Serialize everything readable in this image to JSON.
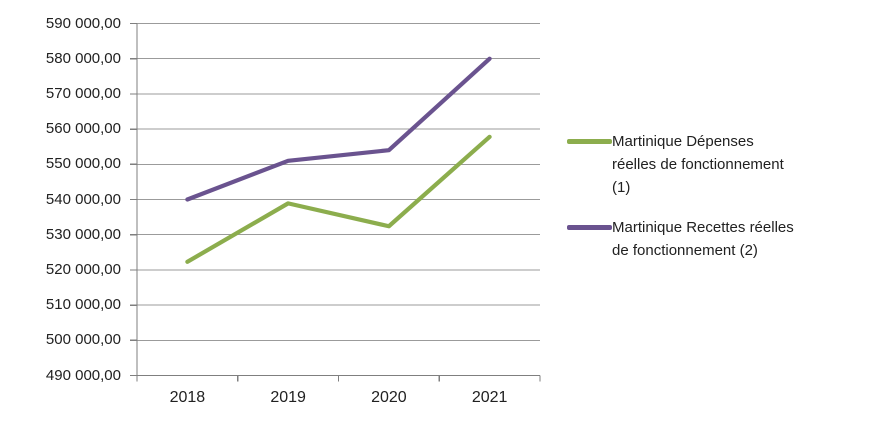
{
  "chart_data": {
    "type": "line",
    "categories": [
      "2018",
      "2019",
      "2020",
      "2021"
    ],
    "series": [
      {
        "name": "Martinique Dépenses réelles de fonctionnement (1)",
        "legend_lines": [
          "Martinique Dépenses",
          "réelles de fonctionnement",
          "(1)"
        ],
        "color": "#8CAD4D",
        "values": [
          522300,
          538900,
          532400,
          557800
        ]
      },
      {
        "name": "Martinique Recettes réelles de fonctionnement (2)",
        "legend_lines": [
          "Martinique Recettes réelles",
          "de fonctionnement (2)"
        ],
        "color": "#6A538F",
        "values": [
          540000,
          551000,
          554000,
          580000
        ]
      }
    ],
    "ylim": [
      490000,
      590000
    ],
    "y_tick_step": 10000,
    "y_tick_labels": [
      "490 000,00",
      "500 000,00",
      "510 000,00",
      "520 000,00",
      "530 000,00",
      "540 000,00",
      "550 000,00",
      "560 000,00",
      "570 000,00",
      "580 000,00",
      "590 000,00"
    ],
    "grid": true,
    "legend_position": "right",
    "title": "",
    "xlabel": "",
    "ylabel": ""
  },
  "style_colors": {
    "gridline": "#9B9B9B",
    "axis": "#7F7F7F",
    "text": "#212121",
    "background": "#FFFFFF"
  }
}
